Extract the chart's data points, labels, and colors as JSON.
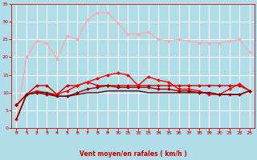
{
  "bg_color": "#b0dde8",
  "grid_color": "#ffffff",
  "xlabel": "Vent moyen/en rafales ( km/h )",
  "xlabel_color": "#cc0000",
  "tick_color": "#cc0000",
  "xlim": [
    -0.5,
    23.5
  ],
  "ylim": [
    0,
    35
  ],
  "yticks": [
    0,
    5,
    10,
    15,
    20,
    25,
    30,
    35
  ],
  "xticks": [
    0,
    1,
    2,
    3,
    4,
    5,
    6,
    7,
    8,
    9,
    10,
    11,
    12,
    13,
    14,
    15,
    16,
    17,
    18,
    19,
    20,
    21,
    22,
    23
  ],
  "series": [
    {
      "x": [
        0,
        1,
        2,
        3,
        4,
        5,
        6,
        7,
        8,
        9,
        10,
        11,
        12,
        13,
        14,
        15,
        16,
        17,
        18,
        19,
        20,
        21,
        22,
        23
      ],
      "y": [
        2.5,
        20,
        24.5,
        24,
        19.5,
        26,
        25,
        30.5,
        32.5,
        32.5,
        29.5,
        26.5,
        26.5,
        27,
        25,
        24.5,
        25,
        24.5,
        24,
        24,
        24,
        24.5,
        25,
        21.5
      ],
      "color": "#ffaaaa",
      "marker": "D",
      "markersize": 2,
      "linewidth": 1.0
    },
    {
      "x": [
        0,
        1,
        2,
        3,
        4,
        5,
        6,
        7,
        8,
        9,
        10,
        11,
        12,
        13,
        14,
        15,
        16,
        17,
        18,
        19,
        20,
        21,
        22,
        23
      ],
      "y": [
        6.5,
        9.5,
        12,
        12,
        9.5,
        12,
        12,
        13,
        12,
        12,
        12,
        12,
        12,
        12,
        12,
        12,
        12,
        12,
        12,
        12,
        12,
        12,
        12,
        10.5
      ],
      "color": "#cc0000",
      "marker": "D",
      "markersize": 2,
      "linewidth": 1.0
    },
    {
      "x": [
        0,
        1,
        2,
        3,
        4,
        5,
        6,
        7,
        8,
        9,
        10,
        11,
        12,
        13,
        14,
        15,
        16,
        17,
        18,
        19,
        20,
        21,
        22,
        23
      ],
      "y": [
        2.5,
        9.5,
        10.5,
        10,
        9.5,
        10.5,
        12,
        13,
        14,
        15,
        15.5,
        15,
        12,
        14.5,
        13.5,
        13,
        11,
        11,
        10.5,
        9.5,
        9.5,
        11,
        12.5,
        10.5
      ],
      "color": "#ff0000",
      "marker": "D",
      "markersize": 2,
      "linewidth": 1.0
    },
    {
      "x": [
        0,
        1,
        2,
        3,
        4,
        5,
        6,
        7,
        8,
        9,
        10,
        11,
        12,
        13,
        14,
        15,
        16,
        17,
        18,
        19,
        20,
        21,
        22,
        23
      ],
      "y": [
        6.5,
        9.5,
        10,
        9.5,
        9,
        9,
        10,
        11,
        11.5,
        12,
        11.5,
        11.5,
        11.5,
        11.5,
        11,
        11,
        10.5,
        10.5,
        10,
        10,
        9.5,
        9.5,
        9.5,
        10.5
      ],
      "color": "#990000",
      "marker": "D",
      "markersize": 2,
      "linewidth": 1.0
    },
    {
      "x": [
        0,
        1,
        2,
        3,
        4,
        5,
        6,
        7,
        8,
        9,
        10,
        11,
        12,
        13,
        14,
        15,
        16,
        17,
        18,
        19,
        20,
        21,
        22,
        23
      ],
      "y": [
        2.5,
        9.5,
        10,
        10,
        9,
        9,
        9.5,
        10,
        10,
        10.5,
        10.5,
        10.5,
        10.5,
        10,
        10,
        10,
        10,
        10,
        10,
        10,
        9.5,
        9.5,
        9.5,
        10.5
      ],
      "color": "#660000",
      "marker": null,
      "markersize": 0,
      "linewidth": 1.0
    }
  ],
  "wind_arrows_color": "#cc0000",
  "num_arrows": 24
}
